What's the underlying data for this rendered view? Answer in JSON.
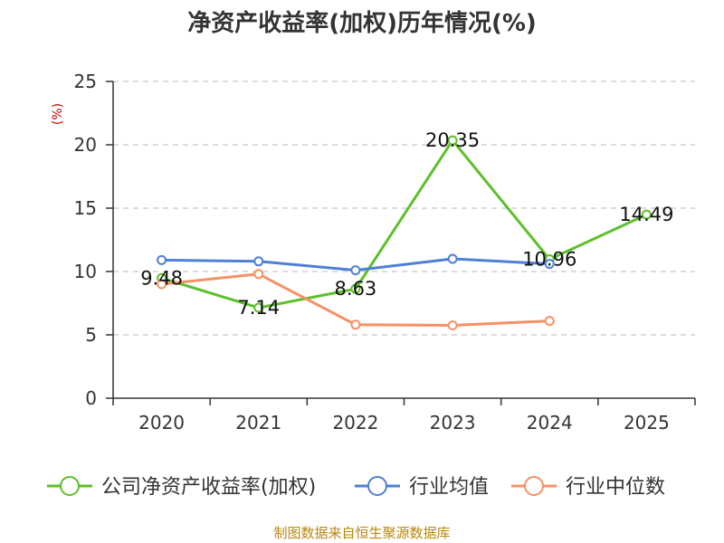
{
  "chart_data": {
    "type": "line",
    "title": "净资产收益率(加权)历年情况(%)",
    "ylabel": "(%)",
    "xlabel": "",
    "categories": [
      "2020",
      "2021",
      "2022",
      "2023",
      "2024",
      "2025"
    ],
    "ylim": [
      0,
      25
    ],
    "yticks": [
      0,
      5,
      10,
      15,
      20,
      25
    ],
    "grid": true,
    "legend_position": "bottom",
    "series": [
      {
        "name": "公司净资产收益率(加权)",
        "color": "#5cc02a",
        "values": [
          9.48,
          7.14,
          8.63,
          20.35,
          10.96,
          14.49
        ],
        "labels": [
          "9.48",
          "7.14",
          "8.63",
          "20.35",
          "10.96",
          "14.49"
        ]
      },
      {
        "name": "行业均值",
        "color": "#4f7fd6",
        "values": [
          10.9,
          10.8,
          10.1,
          11.0,
          10.6,
          null
        ]
      },
      {
        "name": "行业中位数",
        "color": "#f59164",
        "values": [
          9.0,
          9.8,
          5.8,
          5.75,
          6.1,
          null
        ]
      }
    ]
  },
  "footer": {
    "source": "制图数据来自恒生聚源数据库"
  }
}
